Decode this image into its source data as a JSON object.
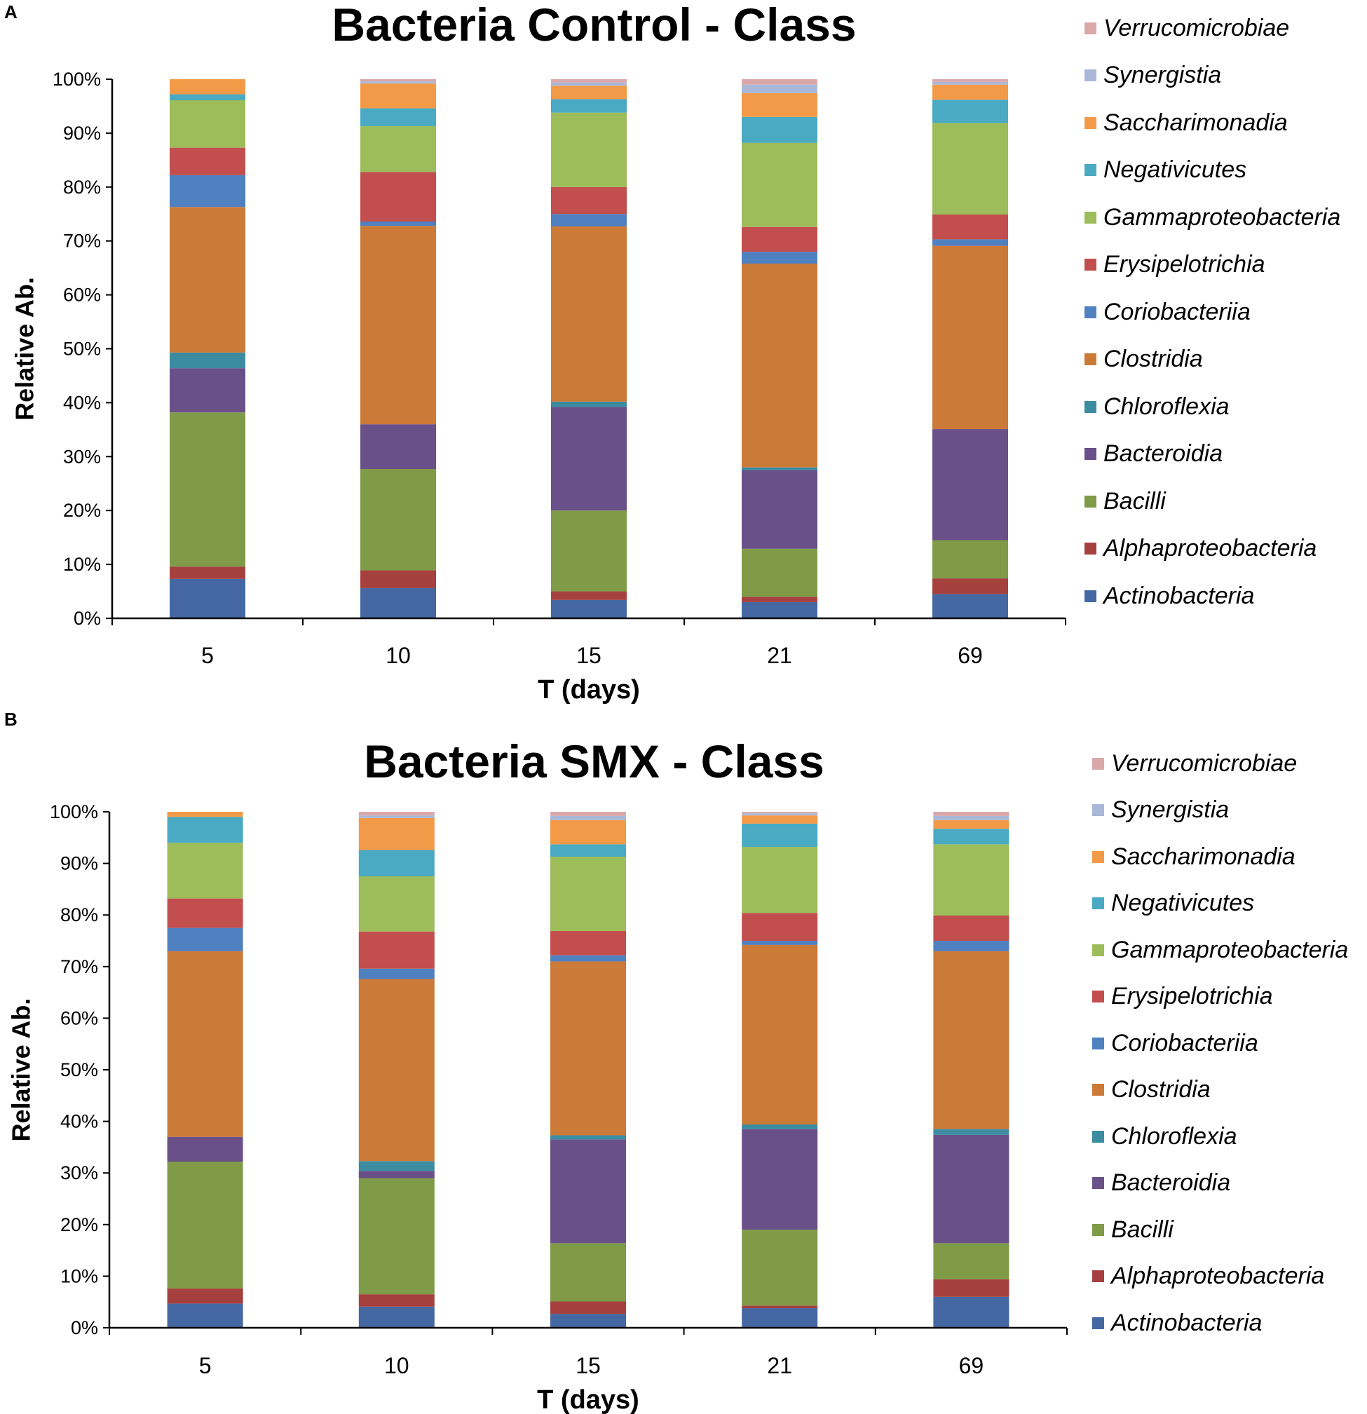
{
  "classes": [
    "Actinobacteria",
    "Alphaproteobacteria",
    "Bacilli",
    "Bacteroidia",
    "Chloroflexia",
    "Clostridia",
    "Coriobacteriia",
    "Erysipelotrichia",
    "Gammaproteobacteria",
    "Negativicutes",
    "Saccharimonadia",
    "Synergistia",
    "Verrucomicrobiae"
  ],
  "colors": {
    "Actinobacteria": "#4568a3",
    "Alphaproteobacteria": "#a6403f",
    "Bacilli": "#7f9b48",
    "Bacteroidia": "#6a5088",
    "Chloroflexia": "#3b8ca1",
    "Clostridia": "#cc7a38",
    "Coriobacteriia": "#4f80c0",
    "Erysipelotrichia": "#c24e4d",
    "Gammaproteobacteria": "#9dbc5a",
    "Negativicutes": "#4aaac4",
    "Saccharimonadia": "#f39a48",
    "Synergistia": "#a9b8d9",
    "Verrucomicrobiae": "#dba8a9"
  },
  "chart_data": [
    {
      "panel": "A",
      "type": "bar",
      "stacked": true,
      "title": "Bacteria Control - Class",
      "xlabel": "T (days)",
      "ylabel": "Relative Ab.",
      "ylim": [
        0,
        100
      ],
      "yticks": [
        "0%",
        "10%",
        "20%",
        "30%",
        "40%",
        "50%",
        "60%",
        "70%",
        "80%",
        "90%",
        "100%"
      ],
      "categories": [
        "5",
        "10",
        "15",
        "21",
        "69"
      ],
      "series": [
        {
          "name": "Actinobacteria",
          "values": [
            7.3,
            5.6,
            3.4,
            3.0,
            4.5
          ]
        },
        {
          "name": "Alphaproteobacteria",
          "values": [
            2.3,
            3.3,
            1.6,
            1.0,
            2.9
          ]
        },
        {
          "name": "Bacilli",
          "values": [
            28.6,
            18.8,
            15.0,
            8.9,
            7.1
          ]
        },
        {
          "name": "Bacteroidia",
          "values": [
            8.2,
            8.3,
            19.2,
            14.6,
            20.6
          ]
        },
        {
          "name": "Chloroflexia",
          "values": [
            2.9,
            0.0,
            1.0,
            0.5,
            0.0
          ]
        },
        {
          "name": "Clostridia",
          "values": [
            27.0,
            36.8,
            32.5,
            37.8,
            34.0
          ]
        },
        {
          "name": "Coriobacteriia",
          "values": [
            5.9,
            0.8,
            2.3,
            2.2,
            1.2
          ]
        },
        {
          "name": "Erysipelotrichia",
          "values": [
            5.1,
            9.2,
            5.0,
            4.6,
            4.6
          ]
        },
        {
          "name": "Gammaproteobacteria",
          "values": [
            8.8,
            8.5,
            13.8,
            15.6,
            17.0
          ]
        },
        {
          "name": "Negativicutes",
          "values": [
            1.1,
            3.3,
            2.5,
            4.8,
            4.3
          ]
        },
        {
          "name": "Saccharimonadia",
          "values": [
            2.8,
            4.6,
            2.5,
            4.4,
            2.8
          ]
        },
        {
          "name": "Synergistia",
          "values": [
            0.0,
            0.4,
            0.6,
            1.6,
            0.5
          ]
        },
        {
          "name": "Verrucomicrobiae",
          "values": [
            0.0,
            0.4,
            0.6,
            1.0,
            0.5
          ]
        }
      ],
      "legend": [
        "Verrucomicrobiae",
        "Synergistia",
        "Saccharimonadia",
        "Negativicutes",
        "Gammaproteobacteria",
        "Erysipelotrichia",
        "Coriobacteriia",
        "Clostridia",
        "Chloroflexia",
        "Bacteroidia",
        "Bacilli",
        "Alphaproteobacteria",
        "Actinobacteria"
      ]
    },
    {
      "panel": "B",
      "type": "bar",
      "stacked": true,
      "title": "Bacteria SMX - Class",
      "xlabel": "T (days)",
      "ylabel": "Relative Ab.",
      "ylim": [
        0,
        100
      ],
      "yticks": [
        "0%",
        "10%",
        "20%",
        "30%",
        "40%",
        "50%",
        "60%",
        "70%",
        "80%",
        "90%",
        "100%"
      ],
      "categories": [
        "5",
        "10",
        "15",
        "21",
        "69"
      ],
      "series": [
        {
          "name": "Actinobacteria",
          "values": [
            4.7,
            4.1,
            2.7,
            3.8,
            6.0
          ]
        },
        {
          "name": "Alphaproteobacteria",
          "values": [
            2.9,
            2.4,
            2.4,
            0.5,
            3.4
          ]
        },
        {
          "name": "Bacilli",
          "values": [
            24.6,
            22.5,
            11.3,
            14.7,
            7.0
          ]
        },
        {
          "name": "Bacteroidia",
          "values": [
            4.8,
            1.4,
            20.1,
            19.5,
            21.0
          ]
        },
        {
          "name": "Chloroflexia",
          "values": [
            0.0,
            1.9,
            0.8,
            0.9,
            1.1
          ]
        },
        {
          "name": "Clostridia",
          "values": [
            36.0,
            35.3,
            33.7,
            34.8,
            34.5
          ]
        },
        {
          "name": "Coriobacteriia",
          "values": [
            4.5,
            2.0,
            1.2,
            0.8,
            2.0
          ]
        },
        {
          "name": "Erysipelotrichia",
          "values": [
            5.7,
            7.2,
            4.7,
            5.4,
            4.9
          ]
        },
        {
          "name": "Gammaproteobacteria",
          "values": [
            10.8,
            10.7,
            14.4,
            12.8,
            13.8
          ]
        },
        {
          "name": "Negativicutes",
          "values": [
            5.0,
            5.1,
            2.4,
            4.5,
            3.0
          ]
        },
        {
          "name": "Saccharimonadia",
          "values": [
            1.0,
            6.2,
            4.7,
            1.6,
            1.7
          ]
        },
        {
          "name": "Synergistia",
          "values": [
            0.0,
            0.5,
            0.8,
            0.4,
            0.8
          ]
        },
        {
          "name": "Verrucomicrobiae",
          "values": [
            0.0,
            0.7,
            0.8,
            0.3,
            0.8
          ]
        }
      ],
      "legend": [
        "Verrucomicrobiae",
        "Synergistia",
        "Saccharimonadia",
        "Negativicutes",
        "Gammaproteobacteria",
        "Erysipelotrichia",
        "Coriobacteriia",
        "Clostridia",
        "Chloroflexia",
        "Bacteroidia",
        "Bacilli",
        "Alphaproteobacteria",
        "Actinobacteria"
      ]
    }
  ]
}
